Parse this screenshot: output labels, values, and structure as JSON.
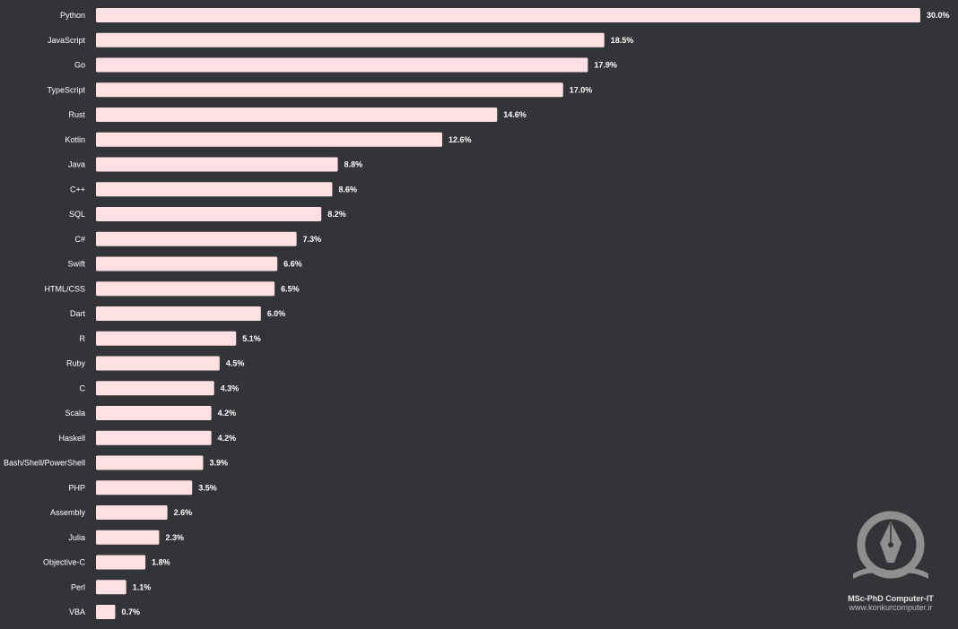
{
  "chart_data": {
    "type": "bar",
    "orientation": "horizontal",
    "categories": [
      "Python",
      "JavaScript",
      "Go",
      "TypeScript",
      "Rust",
      "Kotlin",
      "Java",
      "C++",
      "SQL",
      "C#",
      "Swift",
      "HTML/CSS",
      "Dart",
      "R",
      "Ruby",
      "C",
      "Scala",
      "Haskell",
      "Bash/Shell/PowerShell",
      "PHP",
      "Assembly",
      "Julia",
      "Objective-C",
      "Perl",
      "VBA"
    ],
    "values": [
      30.0,
      18.5,
      17.9,
      17.0,
      14.6,
      12.6,
      8.8,
      8.6,
      8.2,
      7.3,
      6.6,
      6.5,
      6.0,
      5.1,
      4.5,
      4.3,
      4.2,
      4.2,
      3.9,
      3.5,
      2.6,
      2.3,
      1.8,
      1.1,
      0.7
    ],
    "value_labels": [
      "30.0%",
      "18.5%",
      "17.9%",
      "17.0%",
      "14.6%",
      "12.6%",
      "8.8%",
      "8.6%",
      "8.2%",
      "7.3%",
      "6.6%",
      "6.5%",
      "6.0%",
      "5.1%",
      "4.5%",
      "4.3%",
      "4.2%",
      "4.2%",
      "3.9%",
      "3.5%",
      "2.6%",
      "2.3%",
      "1.8%",
      "1.1%",
      "0.7%"
    ],
    "xlim": [
      0,
      30
    ],
    "unit": "%",
    "grid": false,
    "legend": "none",
    "bar_color": "#ffe0e3",
    "background_color": "#323437"
  },
  "watermark": {
    "title": "MSc-PhD Computer-IT",
    "url": "www.konkurcomputer.ir",
    "icon": "pen-book-logo-icon"
  }
}
